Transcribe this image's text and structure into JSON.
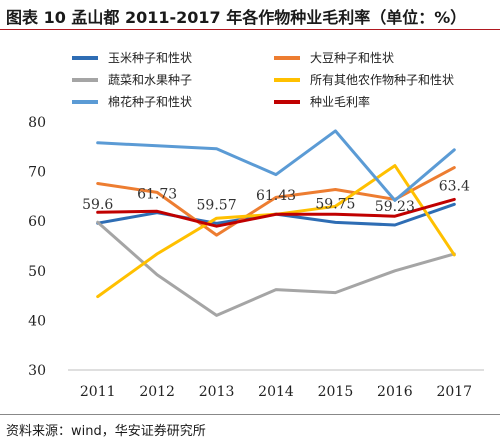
{
  "title": "图表 10 孟山都 2011-2017 年各作物种业毛利率（单位：%）",
  "source": "资料来源：wind，华安证券研究所",
  "chart_data": {
    "type": "line",
    "title": "图表 10 孟山都 2011-2017 年各作物种业毛利率（单位：%）",
    "xlabel": "",
    "ylabel": "",
    "x": [
      "2011",
      "2012",
      "2013",
      "2014",
      "2015",
      "2016",
      "2017"
    ],
    "ylim": [
      30,
      80
    ],
    "yticks": [
      30,
      40,
      50,
      60,
      70,
      80
    ],
    "grid": false,
    "legend_position": "top",
    "series": [
      {
        "name": "玉米种子和性状",
        "color": "#2e6db4",
        "values": [
          59.6,
          61.73,
          59.57,
          61.43,
          59.75,
          59.23,
          63.4
        ]
      },
      {
        "name": "大豆种子和性状",
        "color": "#ed7d31",
        "values": [
          67.6,
          65.8,
          57.2,
          64.8,
          66.4,
          64.4,
          70.8
        ]
      },
      {
        "name": "蔬菜和水果种子",
        "color": "#a5a5a5",
        "values": [
          59.8,
          49.2,
          41.0,
          46.2,
          45.6,
          50.0,
          53.4
        ]
      },
      {
        "name": "所有其他农作物种子和性状",
        "color": "#ffc000",
        "values": [
          44.8,
          53.4,
          60.6,
          61.4,
          63.0,
          71.2,
          53.2
        ]
      },
      {
        "name": "棉花种子和性状",
        "color": "#5b9bd5",
        "values": [
          75.8,
          75.2,
          74.6,
          69.4,
          78.2,
          64.2,
          74.4
        ]
      },
      {
        "name": "种业毛利率",
        "color": "#c00000",
        "values": [
          61.8,
          62.0,
          59.0,
          61.4,
          61.4,
          61.0,
          64.4
        ]
      }
    ],
    "data_labels": {
      "series": "玉米种子和性状",
      "labels": [
        "59.6",
        "61.73",
        "59.57",
        "61.43",
        "59.75",
        "59.23",
        "63.4"
      ]
    }
  }
}
